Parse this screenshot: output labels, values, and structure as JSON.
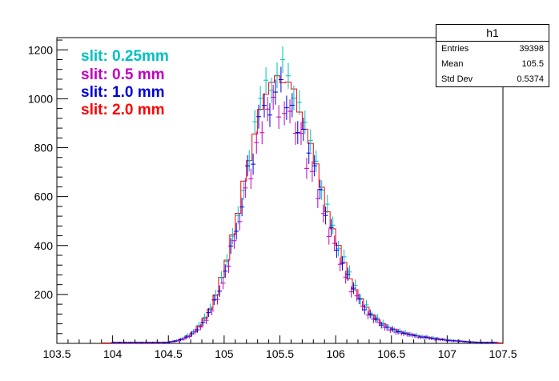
{
  "chart_data": {
    "type": "histogram",
    "xlim": [
      103.5,
      107.5
    ],
    "ylim": [
      0,
      1250
    ],
    "x_ticks": [
      "103.5",
      "104",
      "104.5",
      "105",
      "105.5",
      "106",
      "106.5",
      "107",
      "107.5"
    ],
    "x_tick_values": [
      103.5,
      104,
      104.5,
      105,
      105.5,
      106,
      106.5,
      107,
      107.5
    ],
    "y_ticks": [
      "200",
      "400",
      "600",
      "800",
      "1000",
      "1200"
    ],
    "y_tick_values": [
      200,
      400,
      600,
      800,
      1000,
      1200
    ],
    "peak_x": 105.48,
    "series": [
      {
        "name": "slit: 0.25mm",
        "color": "#00c0c0",
        "style": "points-with-error-bars",
        "peak": 1110
      },
      {
        "name": "slit: 0.5 mm",
        "color": "#c000c0",
        "style": "points-with-error-bars",
        "peak": 960
      },
      {
        "name": "slit: 1.0 mm",
        "color": "#0000dd",
        "style": "points-with-error-bars",
        "peak": 1020
      },
      {
        "name": "slit: 2.0 mm",
        "color": "#ff0000",
        "style": "step-histogram",
        "peak": 1090
      }
    ],
    "stats_box": {
      "title": "h1",
      "rows": [
        {
          "label": "Entries",
          "value": "39398"
        },
        {
          "label": "Mean",
          "value": "105.5"
        },
        {
          "label": "Std Dev",
          "value": "0.5374"
        }
      ]
    }
  }
}
